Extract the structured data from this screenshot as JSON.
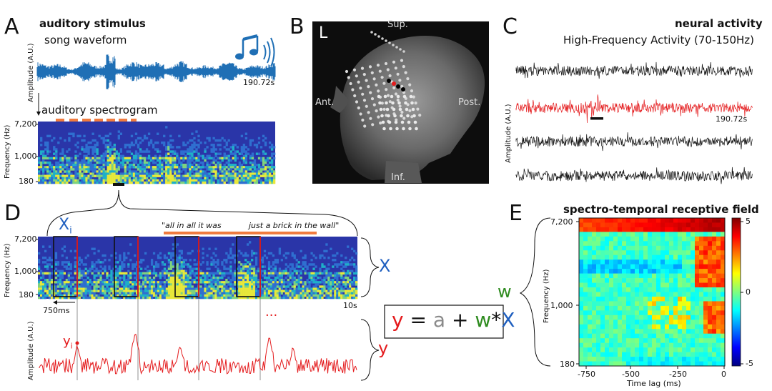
{
  "panels": {
    "A": {
      "letter": "A",
      "title": "auditory stimulus",
      "waveform_label": "song waveform",
      "duration": "190.72s",
      "amp_label": "Amplitude (A.U.)",
      "spectro_label": "auditory spectrogram",
      "freq_label": "Frequency (Hz)",
      "freq_ticks": [
        "7,200",
        "1,000",
        "180"
      ]
    },
    "B": {
      "letter": "B",
      "corner": "L",
      "sup": "Sup.",
      "ant": "Ant.",
      "post": "Post.",
      "inf": "Inf."
    },
    "C": {
      "letter": "C",
      "title": "neural activity",
      "subtitle": "High-Frequency Activity (70-150Hz)",
      "duration": "190.72s",
      "amp_label": "Amplitude (A.U.)"
    },
    "D": {
      "letter": "D",
      "xi_label": "X",
      "xi_sub": "i",
      "quote1": "\"all in all it was",
      "quote2": "just a brick in the wall\"",
      "freq_label": "Frequency (Hz)",
      "freq_ticks": [
        "7,200",
        "1,000",
        "180"
      ],
      "window": "750ms",
      "len": "10s",
      "X": "X",
      "y": "y",
      "yi": "y",
      "yi_sub": "i",
      "dots": "...",
      "amp_label": "Amplitude (A.U.)"
    },
    "equation": {
      "y": "y",
      "eq": "=",
      "a": "a",
      "plus": "+",
      "w": "w",
      "star": "*",
      "X": "X"
    },
    "E": {
      "letter": "E",
      "title": "spectro-temporal receptive field",
      "w": "w",
      "freq_label": "Frequency (Hz)",
      "freq_ticks": [
        "7,200",
        "1,000",
        "180"
      ],
      "x_ticks": [
        "-750",
        "-500",
        "-250",
        "0"
      ],
      "xlabel": "Time lag (ms)",
      "cbar_ticks": [
        "5",
        "0",
        "-5"
      ]
    }
  },
  "colors": {
    "waveform": "#1f6fb5",
    "red_trace": "#e41a1c",
    "x_blue": "#1f5fbf",
    "w_green": "#2e8b1f",
    "a_gray": "#8a8a8a",
    "orange_bar": "#f07b3f"
  }
}
